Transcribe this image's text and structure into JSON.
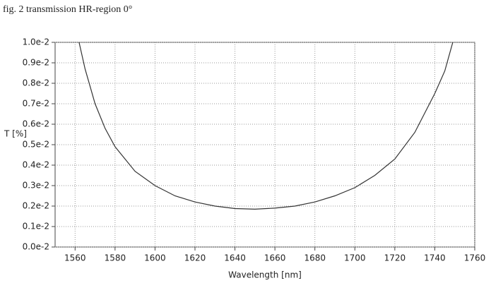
{
  "chart_data": {
    "type": "line",
    "title": "fig. 2 transmission HR-region  0°",
    "x_label": "Wavelength [nm]",
    "y_label": "T [%]",
    "x": [
      1562,
      1565,
      1570,
      1575,
      1580,
      1590,
      1600,
      1610,
      1620,
      1630,
      1640,
      1650,
      1660,
      1670,
      1680,
      1690,
      1700,
      1710,
      1720,
      1730,
      1740,
      1745,
      1749
    ],
    "series": [
      {
        "color": "#333333",
        "values": [
          0.01,
          0.0087,
          0.007,
          0.0058,
          0.0049,
          0.0037,
          0.003,
          0.0025,
          0.0022,
          0.002,
          0.00188,
          0.00185,
          0.0019,
          0.002,
          0.0022,
          0.0025,
          0.0029,
          0.0035,
          0.0043,
          0.0056,
          0.0075,
          0.0086,
          0.01
        ]
      }
    ],
    "xlim": [
      1550,
      1760
    ],
    "xticks": [
      1560,
      1580,
      1600,
      1620,
      1640,
      1660,
      1680,
      1700,
      1720,
      1740,
      1760
    ],
    "ylim": [
      0,
      0.01
    ],
    "yticks": [
      {
        "value": 0,
        "label": "0.0e-2"
      },
      {
        "value": 0.001,
        "label": "0.1e-2"
      },
      {
        "value": 0.002,
        "label": "0.2e-2"
      },
      {
        "value": 0.003,
        "label": "0.3e-2"
      },
      {
        "value": 0.004,
        "label": "0.4e-2"
      },
      {
        "value": 0.005,
        "label": "0.5e-2"
      },
      {
        "value": 0.006,
        "label": "0.6e-2"
      },
      {
        "value": 0.007,
        "label": "0.7e-2"
      },
      {
        "value": 0.008,
        "label": "0.8e-2"
      },
      {
        "value": 0.009,
        "label": "0.9e-2"
      },
      {
        "value": 0.01,
        "label": "1.0e-2"
      }
    ],
    "grid": true
  }
}
